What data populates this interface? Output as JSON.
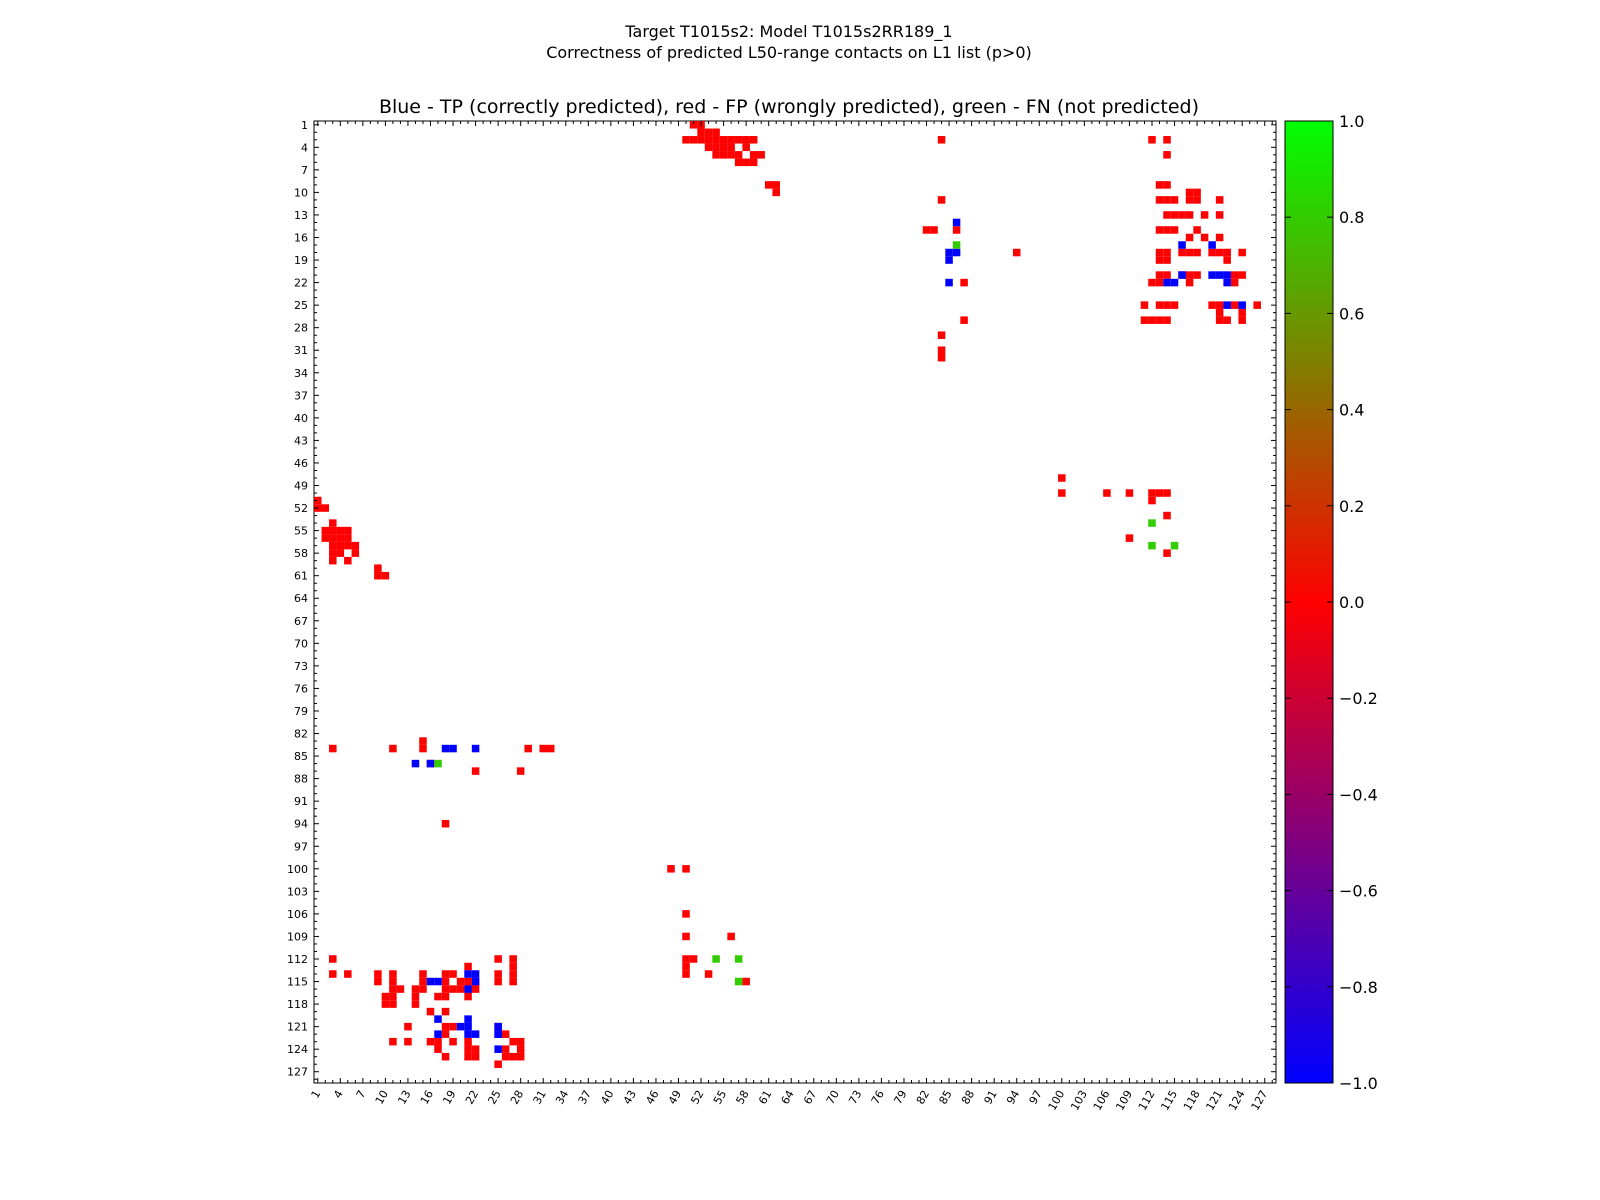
{
  "title": {
    "line1": "Target T1015s2: Model T1015s2RR189_1",
    "line2": "Correctness of predicted L50-range contacts on L1 list (p>0)"
  },
  "plot_title": "Blue - TP (correctly predicted), red - FP (wrongly predicted), green - FN (not predicted)",
  "colors": {
    "tp": "#0000ff",
    "fp": "#ff0000",
    "fn": "#33cc00"
  },
  "chart_data": {
    "type": "heatmap",
    "title": "Blue - TP (correctly predicted), red - FP (wrongly predicted), green - FN (not predicted)",
    "xlabel": "",
    "ylabel": "",
    "xlim": [
      1,
      129
    ],
    "ylim": [
      1,
      129
    ],
    "x_ticks": [
      1,
      4,
      7,
      10,
      13,
      16,
      19,
      22,
      25,
      28,
      31,
      34,
      37,
      40,
      43,
      46,
      49,
      52,
      55,
      58,
      61,
      64,
      67,
      70,
      73,
      76,
      79,
      82,
      85,
      88,
      91,
      94,
      97,
      100,
      103,
      106,
      109,
      112,
      115,
      118,
      121,
      124,
      127
    ],
    "y_ticks": [
      1,
      4,
      7,
      10,
      13,
      16,
      19,
      22,
      25,
      28,
      31,
      34,
      37,
      40,
      43,
      46,
      49,
      52,
      55,
      58,
      61,
      64,
      67,
      70,
      73,
      76,
      79,
      82,
      85,
      88,
      91,
      94,
      97,
      100,
      103,
      106,
      109,
      112,
      115,
      118,
      121,
      124,
      127
    ],
    "colorbar": {
      "min": -1.0,
      "max": 1.0,
      "ticks": [
        "1.0",
        "0.8",
        "0.6",
        "0.4",
        "0.2",
        "0.0",
        "−0.2",
        "−0.4",
        "−0.6",
        "−0.8",
        "−1.0"
      ]
    },
    "legend": "none",
    "grid": false,
    "cells": {
      "tp": [
        [
          86,
          14
        ],
        [
          85,
          18
        ],
        [
          85,
          19
        ],
        [
          86,
          18
        ],
        [
          85,
          22
        ],
        [
          116,
          17
        ],
        [
          115,
          22
        ],
        [
          120,
          17
        ],
        [
          120,
          21
        ],
        [
          121,
          21
        ],
        [
          122,
          21
        ],
        [
          122,
          22
        ],
        [
          122,
          25
        ],
        [
          124,
          25
        ],
        [
          116,
          21
        ],
        [
          114,
          22
        ],
        [
          18,
          84
        ],
        [
          19,
          84
        ],
        [
          22,
          84
        ],
        [
          14,
          86
        ],
        [
          16,
          86
        ],
        [
          16,
          115
        ],
        [
          17,
          115
        ],
        [
          21,
          116
        ],
        [
          21,
          121
        ],
        [
          21,
          114
        ],
        [
          21,
          120
        ],
        [
          22,
          114
        ],
        [
          22,
          115
        ],
        [
          25,
          122
        ],
        [
          25,
          124
        ],
        [
          17,
          120
        ],
        [
          22,
          122
        ],
        [
          25,
          121
        ],
        [
          25,
          122
        ],
        [
          20,
          121
        ],
        [
          21,
          122
        ],
        [
          17,
          122
        ]
      ],
      "fn": [
        [
          86,
          17
        ],
        [
          112,
          54
        ],
        [
          112,
          57
        ],
        [
          115,
          57
        ],
        [
          54,
          112
        ],
        [
          57,
          112
        ],
        [
          57,
          115
        ],
        [
          17,
          86
        ]
      ],
      "fp": [
        [
          51,
          1
        ],
        [
          52,
          1
        ],
        [
          52,
          2
        ],
        [
          53,
          2
        ],
        [
          54,
          2
        ],
        [
          50,
          3
        ],
        [
          51,
          3
        ],
        [
          52,
          3
        ],
        [
          53,
          3
        ],
        [
          54,
          3
        ],
        [
          55,
          3
        ],
        [
          56,
          3
        ],
        [
          57,
          3
        ],
        [
          58,
          3
        ],
        [
          59,
          3
        ],
        [
          53,
          4
        ],
        [
          54,
          4
        ],
        [
          55,
          4
        ],
        [
          56,
          4
        ],
        [
          58,
          4
        ],
        [
          54,
          5
        ],
        [
          55,
          5
        ],
        [
          56,
          5
        ],
        [
          57,
          5
        ],
        [
          59,
          5
        ],
        [
          60,
          5
        ],
        [
          57,
          6
        ],
        [
          58,
          6
        ],
        [
          59,
          6
        ],
        [
          61,
          9
        ],
        [
          62,
          9
        ],
        [
          62,
          10
        ],
        [
          84,
          3
        ],
        [
          84,
          11
        ],
        [
          82,
          15
        ],
        [
          83,
          15
        ],
        [
          86,
          15
        ],
        [
          87,
          22
        ],
        [
          87,
          27
        ],
        [
          84,
          29
        ],
        [
          84,
          31
        ],
        [
          84,
          32
        ],
        [
          94,
          18
        ],
        [
          112,
          3
        ],
        [
          114,
          3
        ],
        [
          114,
          5
        ],
        [
          113,
          9
        ],
        [
          114,
          9
        ],
        [
          113,
          11
        ],
        [
          114,
          11
        ],
        [
          115,
          11
        ],
        [
          117,
          11
        ],
        [
          118,
          11
        ],
        [
          117,
          10
        ],
        [
          118,
          10
        ],
        [
          121,
          11
        ],
        [
          114,
          13
        ],
        [
          115,
          13
        ],
        [
          116,
          13
        ],
        [
          117,
          13
        ],
        [
          119,
          13
        ],
        [
          121,
          13
        ],
        [
          113,
          15
        ],
        [
          114,
          15
        ],
        [
          115,
          15
        ],
        [
          117,
          16
        ],
        [
          118,
          15
        ],
        [
          119,
          16
        ],
        [
          121,
          16
        ],
        [
          113,
          18
        ],
        [
          114,
          18
        ],
        [
          116,
          18
        ],
        [
          117,
          18
        ],
        [
          118,
          18
        ],
        [
          120,
          18
        ],
        [
          121,
          18
        ],
        [
          122,
          18
        ],
        [
          124,
          18
        ],
        [
          113,
          19
        ],
        [
          114,
          19
        ],
        [
          122,
          19
        ],
        [
          113,
          21
        ],
        [
          114,
          21
        ],
        [
          116,
          21
        ],
        [
          117,
          21
        ],
        [
          118,
          21
        ],
        [
          123,
          21
        ],
        [
          124,
          21
        ],
        [
          112,
          22
        ],
        [
          113,
          22
        ],
        [
          117,
          22
        ],
        [
          123,
          22
        ],
        [
          111,
          25
        ],
        [
          113,
          25
        ],
        [
          114,
          25
        ],
        [
          115,
          25
        ],
        [
          120,
          25
        ],
        [
          121,
          25
        ],
        [
          123,
          25
        ],
        [
          126,
          25
        ],
        [
          111,
          27
        ],
        [
          112,
          27
        ],
        [
          113,
          27
        ],
        [
          114,
          27
        ],
        [
          121,
          27
        ],
        [
          122,
          27
        ],
        [
          124,
          27
        ],
        [
          124,
          26
        ],
        [
          121,
          26
        ],
        [
          100,
          48
        ],
        [
          100,
          50
        ],
        [
          106,
          50
        ],
        [
          109,
          50
        ],
        [
          112,
          50
        ],
        [
          113,
          50
        ],
        [
          114,
          50
        ],
        [
          112,
          51
        ],
        [
          114,
          53
        ],
        [
          109,
          56
        ],
        [
          114,
          58
        ],
        [
          1,
          51
        ],
        [
          1,
          52
        ],
        [
          2,
          52
        ],
        [
          3,
          54
        ],
        [
          3,
          55
        ],
        [
          4,
          55
        ],
        [
          5,
          55
        ],
        [
          2,
          55
        ],
        [
          2,
          56
        ],
        [
          3,
          56
        ],
        [
          4,
          56
        ],
        [
          5,
          56
        ],
        [
          3,
          57
        ],
        [
          4,
          57
        ],
        [
          5,
          57
        ],
        [
          6,
          57
        ],
        [
          3,
          58
        ],
        [
          4,
          58
        ],
        [
          6,
          58
        ],
        [
          3,
          59
        ],
        [
          5,
          59
        ],
        [
          9,
          60
        ],
        [
          9,
          61
        ],
        [
          10,
          61
        ],
        [
          3,
          84
        ],
        [
          11,
          84
        ],
        [
          15,
          83
        ],
        [
          15,
          84
        ],
        [
          16,
          86
        ],
        [
          22,
          87
        ],
        [
          28,
          87
        ],
        [
          29,
          84
        ],
        [
          31,
          84
        ],
        [
          32,
          84
        ],
        [
          18,
          94
        ],
        [
          48,
          100
        ],
        [
          50,
          100
        ],
        [
          50,
          106
        ],
        [
          50,
          109
        ],
        [
          50,
          112
        ],
        [
          50,
          113
        ],
        [
          50,
          114
        ],
        [
          51,
          112
        ],
        [
          53,
          114
        ],
        [
          56,
          109
        ],
        [
          58,
          115
        ],
        [
          3,
          112
        ],
        [
          3,
          114
        ],
        [
          5,
          114
        ],
        [
          9,
          114
        ],
        [
          9,
          115
        ],
        [
          11,
          114
        ],
        [
          11,
          115
        ],
        [
          11,
          117
        ],
        [
          11,
          118
        ],
        [
          10,
          117
        ],
        [
          10,
          118
        ],
        [
          11,
          116
        ],
        [
          12,
          116
        ],
        [
          13,
          121
        ],
        [
          13,
          123
        ],
        [
          14,
          116
        ],
        [
          14,
          117
        ],
        [
          14,
          118
        ],
        [
          15,
          114
        ],
        [
          15,
          115
        ],
        [
          15,
          116
        ],
        [
          16,
          119
        ],
        [
          17,
          117
        ],
        [
          18,
          114
        ],
        [
          18,
          115
        ],
        [
          18,
          116
        ],
        [
          18,
          117
        ],
        [
          18,
          119
        ],
        [
          18,
          121
        ],
        [
          18,
          122
        ],
        [
          18,
          125
        ],
        [
          19,
          114
        ],
        [
          19,
          116
        ],
        [
          19,
          121
        ],
        [
          19,
          123
        ],
        [
          21,
          113
        ],
        [
          21,
          115
        ],
        [
          21,
          116
        ],
        [
          21,
          117
        ],
        [
          21,
          123
        ],
        [
          21,
          124
        ],
        [
          21,
          125
        ],
        [
          22,
          115
        ],
        [
          22,
          116
        ],
        [
          22,
          124
        ],
        [
          22,
          125
        ],
        [
          25,
          112
        ],
        [
          25,
          114
        ],
        [
          25,
          115
        ],
        [
          25,
          121
        ],
        [
          25,
          126
        ],
        [
          26,
          124
        ],
        [
          26,
          125
        ],
        [
          27,
          112
        ],
        [
          27,
          113
        ],
        [
          27,
          114
        ],
        [
          27,
          115
        ],
        [
          27,
          123
        ],
        [
          27,
          125
        ],
        [
          28,
          123
        ],
        [
          28,
          124
        ],
        [
          28,
          125
        ],
        [
          11,
          123
        ],
        [
          20,
          115
        ],
        [
          20,
          116
        ],
        [
          17,
          123
        ],
        [
          17,
          124
        ],
        [
          26,
          122
        ],
        [
          16,
          123
        ]
      ]
    }
  }
}
